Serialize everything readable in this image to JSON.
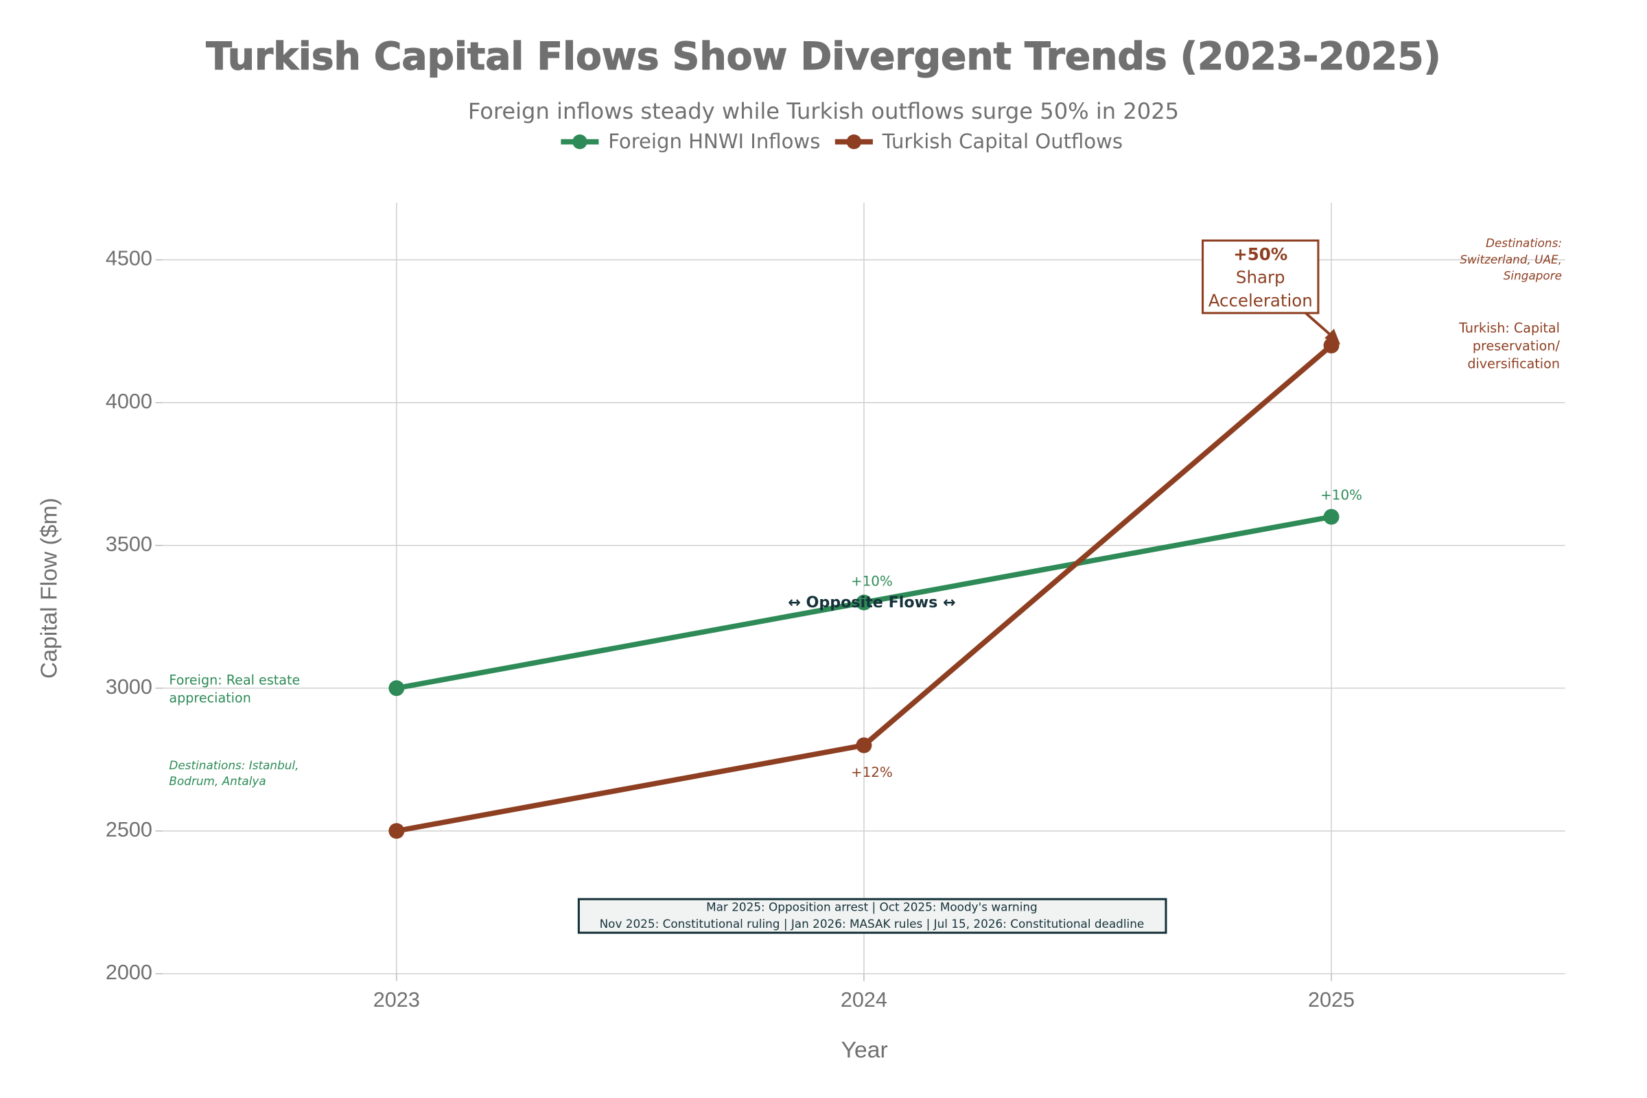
{
  "chart_data": {
    "type": "line",
    "title": "Turkish Capital Flows Show Divergent Trends (2023-2025)",
    "subtitle": "Foreign inflows steady while Turkish outflows surge 50% in 2025",
    "x_label": "Year",
    "y_label": "Capital Flow ($m)",
    "x": [
      2023,
      2024,
      2025
    ],
    "xlim": [
      2022.5,
      2025.5
    ],
    "xticks": [
      2023,
      2024,
      2025
    ],
    "ylim": [
      2000,
      4700
    ],
    "yticks": [
      2000,
      2500,
      3000,
      3500,
      4000,
      4500
    ],
    "grid": true,
    "legend": "top",
    "series": [
      {
        "name": "Foreign HNWI Inflows",
        "color": "#2e8b57",
        "values": [
          3000,
          3300,
          3600
        ]
      },
      {
        "name": "Turkish Capital Outflows",
        "color": "#8e3f22",
        "values": [
          2500,
          2800,
          4200
        ]
      }
    ],
    "annotations": [
      [
        "+10%"
      ],
      [
        "+10%"
      ],
      [
        "+12%"
      ],
      [
        "↔ Opposite Flows ↔"
      ],
      [
        "+50%",
        "Sharp",
        "Acceleration"
      ],
      [
        "Foreign: Real estate",
        "appreciation"
      ],
      [
        "Destinations: Istanbul,",
        "Bodrum, Antalya"
      ],
      [
        "Destinations:",
        "Switzerland, UAE,",
        "Singapore"
      ],
      [
        "Turkish: Capital",
        "preservation/",
        "diversification"
      ],
      [
        "Mar 2025: Opposition arrest | Oct 2025: Moody's warning",
        "Nov 2025: Constitutional ruling | Jan 2026: MASAK rules | Jul 15, 2026: Constitutional deadline"
      ]
    ]
  }
}
